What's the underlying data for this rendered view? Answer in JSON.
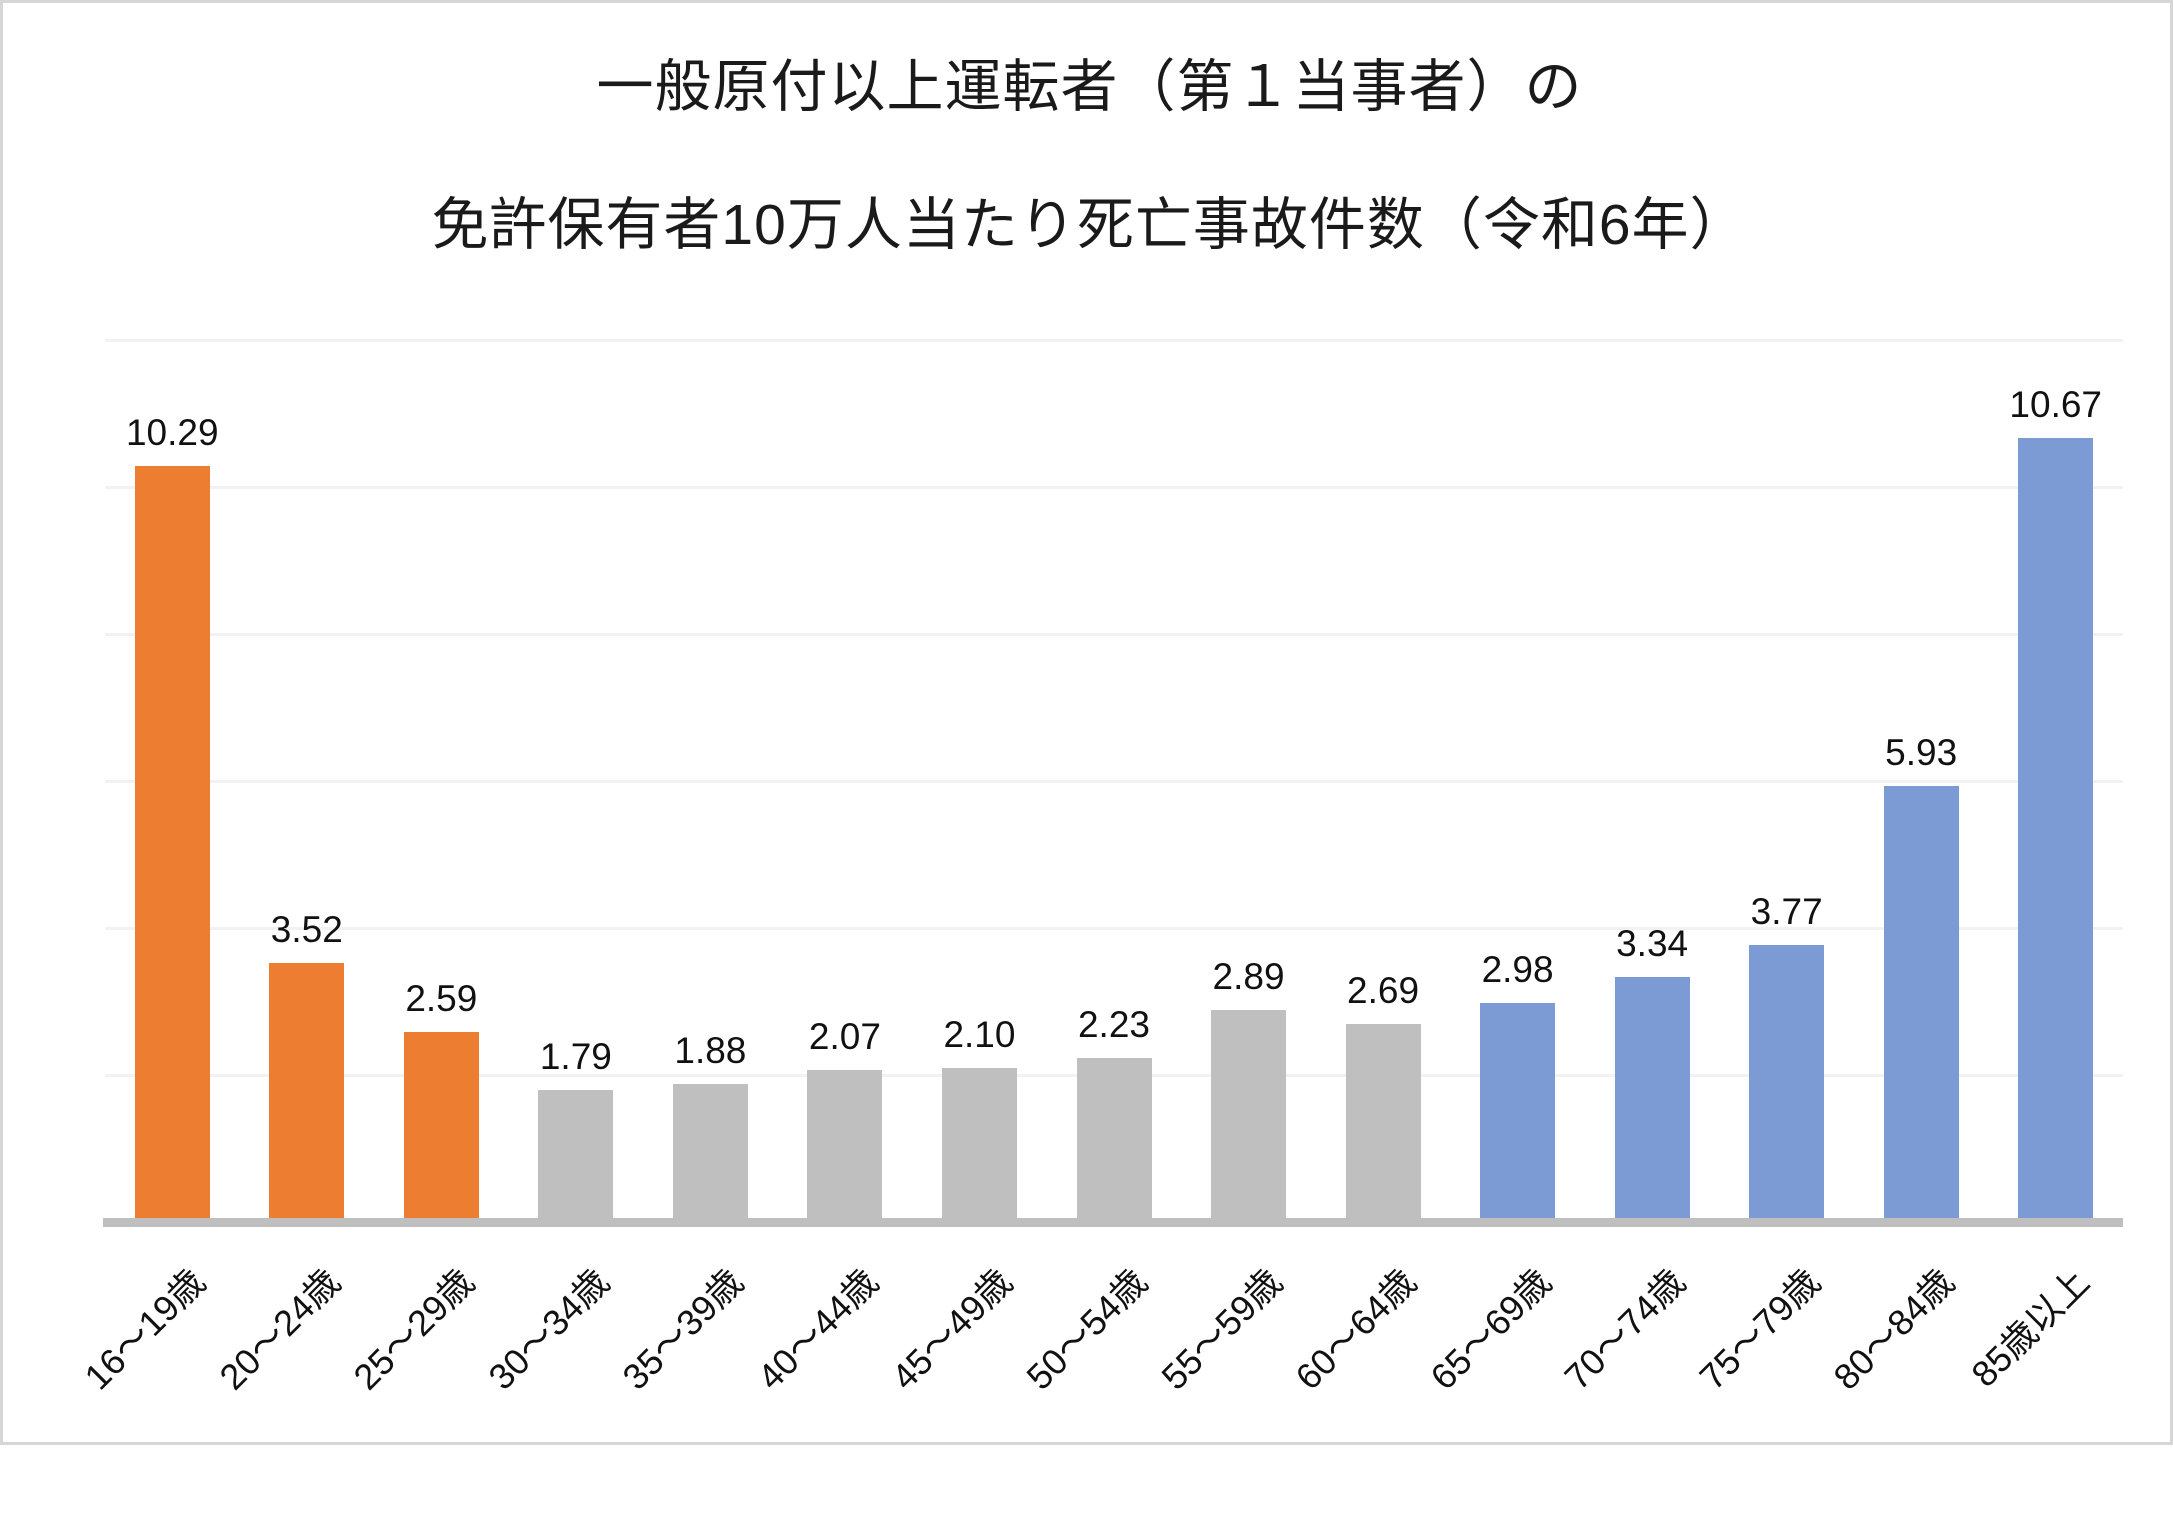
{
  "page": {
    "background": "#ffffff",
    "border_color": "#d6d6d6"
  },
  "title": {
    "line1": "一般原付以上運転者（第１当事者）の",
    "line2": "免許保有者10万人当たり死亡事故件数（令和6年）"
  },
  "chart_data": {
    "type": "bar",
    "title": "一般原付以上運転者（第１当事者）の免許保有者10万人当たり死亡事故件数（令和6年）",
    "categories": [
      "16〜19歳",
      "20〜24歳",
      "25〜29歳",
      "30〜34歳",
      "35〜39歳",
      "40〜44歳",
      "45〜49歳",
      "50〜54歳",
      "55〜59歳",
      "60〜64歳",
      "65〜69歳",
      "70〜74歳",
      "75〜79歳",
      "80〜84歳",
      "85歳以上"
    ],
    "values": [
      10.29,
      3.52,
      2.59,
      1.79,
      1.88,
      2.07,
      2.1,
      2.23,
      2.89,
      2.69,
      2.98,
      3.34,
      3.77,
      5.93,
      10.67
    ],
    "data_labels": [
      "10.29",
      "3.52",
      "2.59",
      "1.79",
      "1.88",
      "2.07",
      "2.10",
      "2.23",
      "2.89",
      "2.69",
      "2.98",
      "3.34",
      "3.77",
      "5.93",
      "10.67"
    ],
    "xlabel": "",
    "ylabel": "",
    "ylim": [
      0,
      12
    ],
    "gridline_step": 2,
    "grid": "horizontal",
    "legend": "none",
    "y_axis_tick_labels_visible": false,
    "bar_colors": [
      "#ED7D31",
      "#ED7D31",
      "#ED7D31",
      "#BFBFBF",
      "#BFBFBF",
      "#BFBFBF",
      "#BFBFBF",
      "#BFBFBF",
      "#BFBFBF",
      "#BFBFBF",
      "#7C9AD4",
      "#7C9AD4",
      "#7C9AD4",
      "#7C9AD4",
      "#7C9AD4"
    ],
    "palette": {
      "young_orange": "#ED7D31",
      "middle_gray": "#BFBFBF",
      "senior_blue": "#7C9AD4"
    },
    "gridline_color": "#F2F2F2",
    "axis_line_color": "#BFBFBF",
    "label_color": "#111111"
  }
}
